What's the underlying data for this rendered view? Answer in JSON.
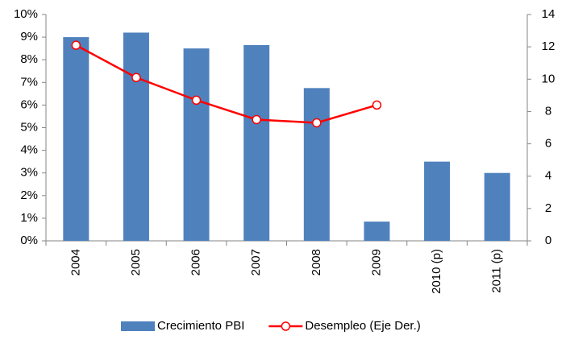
{
  "chart_data": {
    "type": "bar-line",
    "categories": [
      "2004",
      "2005",
      "2006",
      "2007",
      "2008",
      "2009",
      "2010 (p)",
      "2011 (p)"
    ],
    "series": [
      {
        "name": "Crecimiento PBI",
        "color": "#4f81bd",
        "type": "bar",
        "values": [
          9.0,
          9.2,
          8.5,
          8.65,
          6.75,
          0.85,
          3.5,
          3.0
        ]
      },
      {
        "name": "Desempleo (Eje Der.)",
        "color": "#ff0000",
        "type": "line",
        "axis": "y2",
        "values": [
          12.1,
          10.1,
          8.7,
          7.5,
          7.3,
          8.4,
          null,
          null
        ]
      }
    ],
    "ylim": [
      0,
      10
    ],
    "yticks": [
      {
        "value": 0,
        "label": "0%"
      },
      {
        "value": 1,
        "label": "1%"
      },
      {
        "value": 2,
        "label": "2%"
      },
      {
        "value": 3,
        "label": "3%"
      },
      {
        "value": 4,
        "label": "4%"
      },
      {
        "value": 5,
        "label": "5%"
      },
      {
        "value": 6,
        "label": "6%"
      },
      {
        "value": 7,
        "label": "7%"
      },
      {
        "value": 8,
        "label": "8%"
      },
      {
        "value": 9,
        "label": "9%"
      },
      {
        "value": 10,
        "label": "10%"
      }
    ],
    "y2lim": [
      0,
      14
    ],
    "y2ticks": [
      0,
      2,
      4,
      6,
      8,
      10,
      12,
      14
    ],
    "grid": false,
    "legend": "bottom"
  }
}
